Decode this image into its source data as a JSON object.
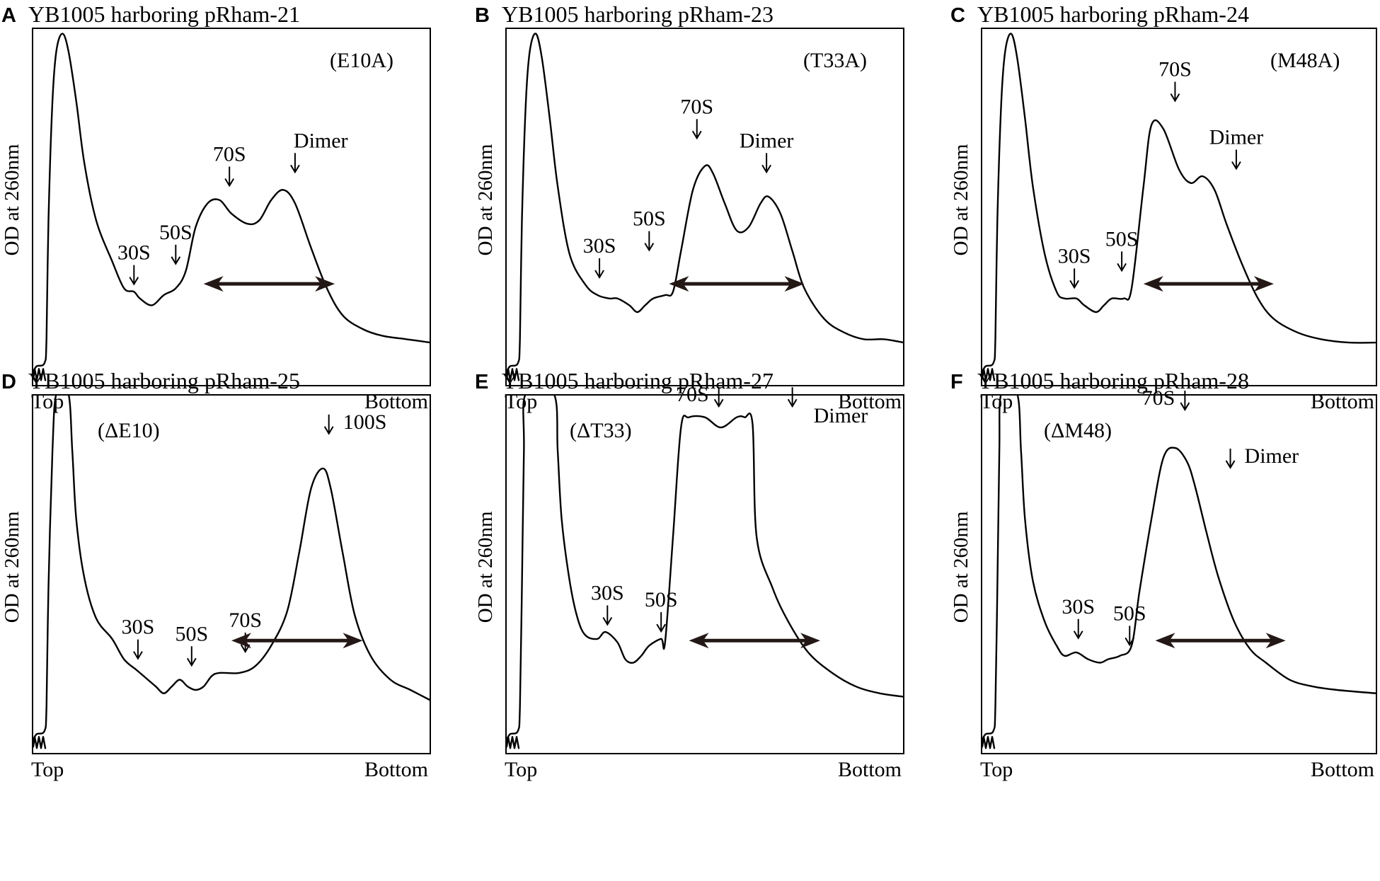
{
  "chart_data": [
    {
      "type": "line",
      "panel": "A",
      "title": "YB1005 harboring pRham-21",
      "annotation": "(E10A)",
      "ylabel": "OD at 260nm",
      "xlabel_left": "Top",
      "xlabel_right": "Bottom",
      "xlim": [
        0,
        1
      ],
      "ylim": [
        0,
        1
      ],
      "trace": [
        [
          0.0,
          0.0
        ],
        [
          0.01,
          0.02
        ],
        [
          0.03,
          0.03
        ],
        [
          0.035,
          0.1
        ],
        [
          0.04,
          0.45
        ],
        [
          0.05,
          0.8
        ],
        [
          0.06,
          0.95
        ],
        [
          0.075,
          1.0
        ],
        [
          0.09,
          0.95
        ],
        [
          0.11,
          0.8
        ],
        [
          0.13,
          0.62
        ],
        [
          0.16,
          0.45
        ],
        [
          0.2,
          0.33
        ],
        [
          0.23,
          0.25
        ],
        [
          0.255,
          0.24
        ],
        [
          0.27,
          0.22
        ],
        [
          0.3,
          0.2
        ],
        [
          0.33,
          0.23
        ],
        [
          0.36,
          0.25
        ],
        [
          0.385,
          0.3
        ],
        [
          0.41,
          0.43
        ],
        [
          0.44,
          0.5
        ],
        [
          0.47,
          0.51
        ],
        [
          0.5,
          0.47
        ],
        [
          0.54,
          0.44
        ],
        [
          0.57,
          0.45
        ],
        [
          0.6,
          0.51
        ],
        [
          0.63,
          0.54
        ],
        [
          0.66,
          0.5
        ],
        [
          0.7,
          0.37
        ],
        [
          0.74,
          0.25
        ],
        [
          0.78,
          0.17
        ],
        [
          0.83,
          0.13
        ],
        [
          0.88,
          0.11
        ],
        [
          0.94,
          0.1
        ],
        [
          1.0,
          0.09
        ]
      ],
      "markers": [
        {
          "label": "30S",
          "x": 0.255,
          "tip": 0.26
        },
        {
          "label": "50S",
          "x": 0.36,
          "tip": 0.32
        },
        {
          "label": "70S",
          "x": 0.495,
          "tip": 0.55
        },
        {
          "label": "Dimer",
          "x": 0.66,
          "tip": 0.59
        }
      ],
      "range_arrow": [
        0.43,
        0.76
      ]
    },
    {
      "type": "line",
      "panel": "B",
      "title": "YB1005 harboring pRham-23",
      "annotation": "(T33A)",
      "ylabel": "OD at 260nm",
      "xlabel_left": "Top",
      "xlabel_right": "Bottom",
      "xlim": [
        0,
        1
      ],
      "ylim": [
        0,
        1
      ],
      "trace": [
        [
          0.0,
          0.0
        ],
        [
          0.01,
          0.02
        ],
        [
          0.03,
          0.03
        ],
        [
          0.035,
          0.1
        ],
        [
          0.04,
          0.45
        ],
        [
          0.05,
          0.8
        ],
        [
          0.06,
          0.95
        ],
        [
          0.075,
          1.0
        ],
        [
          0.09,
          0.93
        ],
        [
          0.11,
          0.75
        ],
        [
          0.13,
          0.55
        ],
        [
          0.16,
          0.35
        ],
        [
          0.2,
          0.26
        ],
        [
          0.23,
          0.23
        ],
        [
          0.26,
          0.22
        ],
        [
          0.28,
          0.22
        ],
        [
          0.31,
          0.2
        ],
        [
          0.33,
          0.18
        ],
        [
          0.35,
          0.2
        ],
        [
          0.37,
          0.22
        ],
        [
          0.4,
          0.23
        ],
        [
          0.42,
          0.24
        ],
        [
          0.44,
          0.36
        ],
        [
          0.47,
          0.54
        ],
        [
          0.5,
          0.61
        ],
        [
          0.52,
          0.59
        ],
        [
          0.55,
          0.5
        ],
        [
          0.58,
          0.42
        ],
        [
          0.61,
          0.43
        ],
        [
          0.64,
          0.5
        ],
        [
          0.66,
          0.52
        ],
        [
          0.69,
          0.47
        ],
        [
          0.72,
          0.36
        ],
        [
          0.75,
          0.25
        ],
        [
          0.8,
          0.16
        ],
        [
          0.85,
          0.12
        ],
        [
          0.9,
          0.1
        ],
        [
          0.95,
          0.1
        ],
        [
          1.0,
          0.09
        ]
      ],
      "markers": [
        {
          "label": "30S",
          "x": 0.235,
          "tip": 0.28
        },
        {
          "label": "50S",
          "x": 0.36,
          "tip": 0.36
        },
        {
          "label": "70S",
          "x": 0.48,
          "tip": 0.69
        },
        {
          "label": "Dimer",
          "x": 0.655,
          "tip": 0.59
        }
      ],
      "range_arrow": [
        0.41,
        0.75
      ]
    },
    {
      "type": "line",
      "panel": "C",
      "title": "YB1005 harboring pRham-24",
      "annotation": "(M48A)",
      "ylabel": "OD at 260nm",
      "xlabel_left": "Top",
      "xlabel_right": "Bottom",
      "xlim": [
        0,
        1
      ],
      "ylim": [
        0,
        1
      ],
      "trace": [
        [
          0.0,
          0.0
        ],
        [
          0.01,
          0.02
        ],
        [
          0.03,
          0.03
        ],
        [
          0.035,
          0.1
        ],
        [
          0.04,
          0.45
        ],
        [
          0.05,
          0.8
        ],
        [
          0.06,
          0.95
        ],
        [
          0.075,
          1.0
        ],
        [
          0.09,
          0.93
        ],
        [
          0.11,
          0.75
        ],
        [
          0.13,
          0.55
        ],
        [
          0.16,
          0.35
        ],
        [
          0.19,
          0.24
        ],
        [
          0.21,
          0.22
        ],
        [
          0.24,
          0.22
        ],
        [
          0.26,
          0.2
        ],
        [
          0.29,
          0.18
        ],
        [
          0.31,
          0.2
        ],
        [
          0.33,
          0.22
        ],
        [
          0.36,
          0.22
        ],
        [
          0.38,
          0.25
        ],
        [
          0.41,
          0.55
        ],
        [
          0.43,
          0.73
        ],
        [
          0.46,
          0.72
        ],
        [
          0.5,
          0.6
        ],
        [
          0.53,
          0.56
        ],
        [
          0.56,
          0.58
        ],
        [
          0.59,
          0.54
        ],
        [
          0.62,
          0.44
        ],
        [
          0.66,
          0.32
        ],
        [
          0.7,
          0.22
        ],
        [
          0.74,
          0.16
        ],
        [
          0.8,
          0.12
        ],
        [
          0.86,
          0.1
        ],
        [
          0.93,
          0.09
        ],
        [
          1.0,
          0.09
        ]
      ],
      "markers": [
        {
          "label": "30S",
          "x": 0.235,
          "tip": 0.25
        },
        {
          "label": "50S",
          "x": 0.355,
          "tip": 0.3
        },
        {
          "label": "70S",
          "x": 0.49,
          "tip": 0.8
        },
        {
          "label": "Dimer",
          "x": 0.645,
          "tip": 0.6
        }
      ],
      "range_arrow": [
        0.41,
        0.74
      ]
    },
    {
      "type": "line",
      "panel": "D",
      "title": "YB1005 harboring pRham-25",
      "annotation": "(ΔE10)",
      "ylabel": "OD at 260nm",
      "xlabel_left": "Top",
      "xlabel_right": "Bottom",
      "xlim": [
        0,
        1
      ],
      "ylim": [
        0,
        1
      ],
      "trace": [
        [
          0.0,
          0.0
        ],
        [
          0.01,
          0.02
        ],
        [
          0.03,
          0.03
        ],
        [
          0.035,
          0.1
        ],
        [
          0.04,
          0.45
        ],
        [
          0.05,
          0.85
        ],
        [
          0.06,
          1.02
        ],
        [
          0.09,
          1.02
        ],
        [
          0.1,
          0.85
        ],
        [
          0.11,
          0.65
        ],
        [
          0.13,
          0.48
        ],
        [
          0.16,
          0.36
        ],
        [
          0.2,
          0.3
        ],
        [
          0.23,
          0.24
        ],
        [
          0.26,
          0.21
        ],
        [
          0.27,
          0.2
        ],
        [
          0.29,
          0.18
        ],
        [
          0.31,
          0.16
        ],
        [
          0.33,
          0.14
        ],
        [
          0.35,
          0.16
        ],
        [
          0.37,
          0.18
        ],
        [
          0.39,
          0.16
        ],
        [
          0.41,
          0.15
        ],
        [
          0.43,
          0.16
        ],
        [
          0.45,
          0.19
        ],
        [
          0.47,
          0.2
        ],
        [
          0.52,
          0.2
        ],
        [
          0.56,
          0.22
        ],
        [
          0.6,
          0.28
        ],
        [
          0.64,
          0.38
        ],
        [
          0.67,
          0.55
        ],
        [
          0.7,
          0.74
        ],
        [
          0.73,
          0.8
        ],
        [
          0.75,
          0.74
        ],
        [
          0.78,
          0.55
        ],
        [
          0.81,
          0.37
        ],
        [
          0.85,
          0.25
        ],
        [
          0.9,
          0.18
        ],
        [
          0.95,
          0.15
        ],
        [
          1.0,
          0.12
        ]
      ],
      "markers": [
        {
          "label": "30S",
          "x": 0.265,
          "tip": 0.24
        },
        {
          "label": "50S",
          "x": 0.4,
          "tip": 0.22
        },
        {
          "label": "70S",
          "x": 0.535,
          "tip": 0.26
        },
        {
          "label": "100S",
          "x": 0.745,
          "tip": 0.9
        }
      ],
      "range_arrow": [
        0.5,
        0.83
      ]
    },
    {
      "type": "line",
      "panel": "E",
      "title": "YB1005 harboring pRham-27",
      "annotation": "(ΔT33)",
      "ylabel": "OD at 260nm",
      "xlabel_left": "Top",
      "xlabel_right": "Bottom",
      "xlim": [
        0,
        1
      ],
      "ylim": [
        0,
        1
      ],
      "trace": [
        [
          0.0,
          0.0
        ],
        [
          0.01,
          0.02
        ],
        [
          0.03,
          0.03
        ],
        [
          0.035,
          0.1
        ],
        [
          0.04,
          0.45
        ],
        [
          0.045,
          0.85
        ],
        [
          0.05,
          1.02
        ],
        [
          0.12,
          1.02
        ],
        [
          0.13,
          0.85
        ],
        [
          0.14,
          0.65
        ],
        [
          0.16,
          0.47
        ],
        [
          0.18,
          0.36
        ],
        [
          0.2,
          0.31
        ],
        [
          0.23,
          0.3
        ],
        [
          0.25,
          0.32
        ],
        [
          0.28,
          0.29
        ],
        [
          0.3,
          0.24
        ],
        [
          0.32,
          0.23
        ],
        [
          0.34,
          0.25
        ],
        [
          0.36,
          0.28
        ],
        [
          0.39,
          0.3
        ],
        [
          0.4,
          0.29
        ],
        [
          0.42,
          0.6
        ],
        [
          0.44,
          0.92
        ],
        [
          0.46,
          0.95
        ],
        [
          0.5,
          0.95
        ],
        [
          0.54,
          0.92
        ],
        [
          0.58,
          0.95
        ],
        [
          0.6,
          0.95
        ],
        [
          0.62,
          0.93
        ],
        [
          0.63,
          0.6
        ],
        [
          0.67,
          0.45
        ],
        [
          0.71,
          0.35
        ],
        [
          0.76,
          0.26
        ],
        [
          0.82,
          0.2
        ],
        [
          0.88,
          0.16
        ],
        [
          0.94,
          0.14
        ],
        [
          1.0,
          0.13
        ]
      ],
      "markers": [
        {
          "label": "30S",
          "x": 0.255,
          "tip": 0.34
        },
        {
          "label": "50S",
          "x": 0.39,
          "tip": 0.32
        },
        {
          "label": "70S",
          "x": 0.535,
          "tip": 0.98
        },
        {
          "label": "Dimer",
          "x": 0.72,
          "tip": 0.98
        }
      ],
      "range_arrow": [
        0.46,
        0.79
      ]
    },
    {
      "type": "line",
      "panel": "F",
      "title": "YB1005 harboring pRham-28",
      "annotation": "(ΔM48)",
      "ylabel": "OD at 260nm",
      "xlabel_left": "Top",
      "xlabel_right": "Bottom",
      "xlim": [
        0,
        1
      ],
      "ylim": [
        0,
        1
      ],
      "trace": [
        [
          0.0,
          0.0
        ],
        [
          0.01,
          0.02
        ],
        [
          0.03,
          0.03
        ],
        [
          0.035,
          0.1
        ],
        [
          0.04,
          0.45
        ],
        [
          0.045,
          0.85
        ],
        [
          0.05,
          1.02
        ],
        [
          0.09,
          1.02
        ],
        [
          0.1,
          0.85
        ],
        [
          0.11,
          0.65
        ],
        [
          0.13,
          0.47
        ],
        [
          0.16,
          0.35
        ],
        [
          0.19,
          0.28
        ],
        [
          0.21,
          0.25
        ],
        [
          0.24,
          0.26
        ],
        [
          0.27,
          0.24
        ],
        [
          0.3,
          0.23
        ],
        [
          0.32,
          0.24
        ],
        [
          0.35,
          0.25
        ],
        [
          0.38,
          0.28
        ],
        [
          0.4,
          0.44
        ],
        [
          0.43,
          0.65
        ],
        [
          0.46,
          0.83
        ],
        [
          0.49,
          0.86
        ],
        [
          0.52,
          0.82
        ],
        [
          0.54,
          0.75
        ],
        [
          0.57,
          0.61
        ],
        [
          0.6,
          0.48
        ],
        [
          0.64,
          0.35
        ],
        [
          0.68,
          0.27
        ],
        [
          0.72,
          0.23
        ],
        [
          0.78,
          0.18
        ],
        [
          0.84,
          0.16
        ],
        [
          0.9,
          0.15
        ],
        [
          1.0,
          0.14
        ]
      ],
      "markers": [
        {
          "label": "30S",
          "x": 0.245,
          "tip": 0.3
        },
        {
          "label": "50S",
          "x": 0.375,
          "tip": 0.28
        },
        {
          "label": "70S",
          "x": 0.515,
          "tip": 0.97
        },
        {
          "label": "Dimer",
          "x": 0.63,
          "tip": 0.8
        }
      ],
      "range_arrow": [
        0.44,
        0.77
      ]
    }
  ]
}
